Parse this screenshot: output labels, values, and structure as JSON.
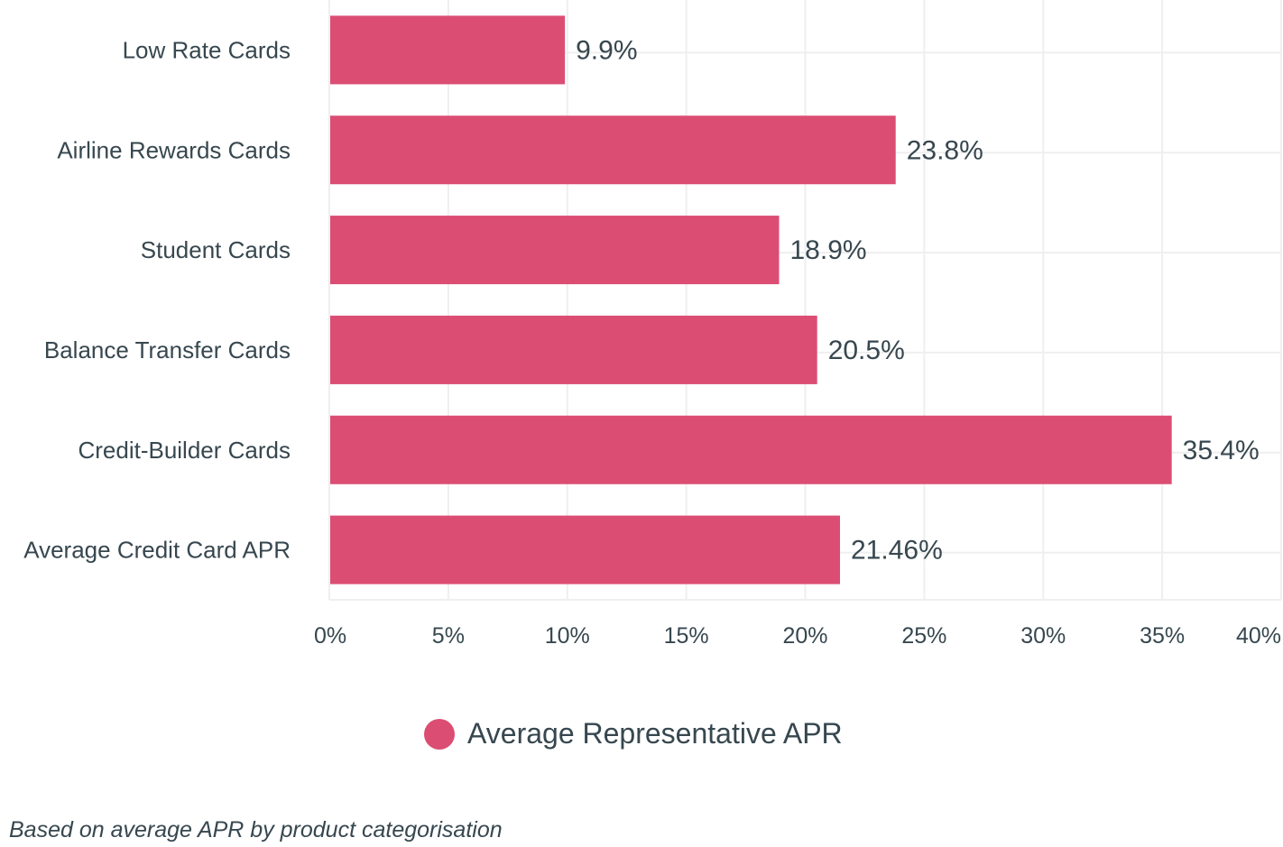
{
  "chart_data": {
    "type": "bar",
    "orientation": "horizontal",
    "categories": [
      "Low Rate Cards",
      "Airline Rewards Cards",
      "Student Cards",
      "Balance Transfer Cards",
      "Credit-Builder Cards",
      "Average Credit Card APR"
    ],
    "series": [
      {
        "name": "Average Representative APR",
        "values": [
          9.9,
          23.8,
          18.9,
          20.5,
          35.4,
          21.46
        ],
        "color": "#dc4d73"
      }
    ],
    "data_labels": [
      "9.9%",
      "23.8%",
      "18.9%",
      "20.5%",
      "35.4%",
      "21.46%"
    ],
    "xlim": [
      0,
      40
    ],
    "x_ticks": [
      "0%",
      "5%",
      "10%",
      "15%",
      "20%",
      "25%",
      "30%",
      "35%",
      "40%"
    ],
    "grid": true,
    "legend_position": "bottom"
  },
  "footnote": "Based on average APR by product categorisation"
}
